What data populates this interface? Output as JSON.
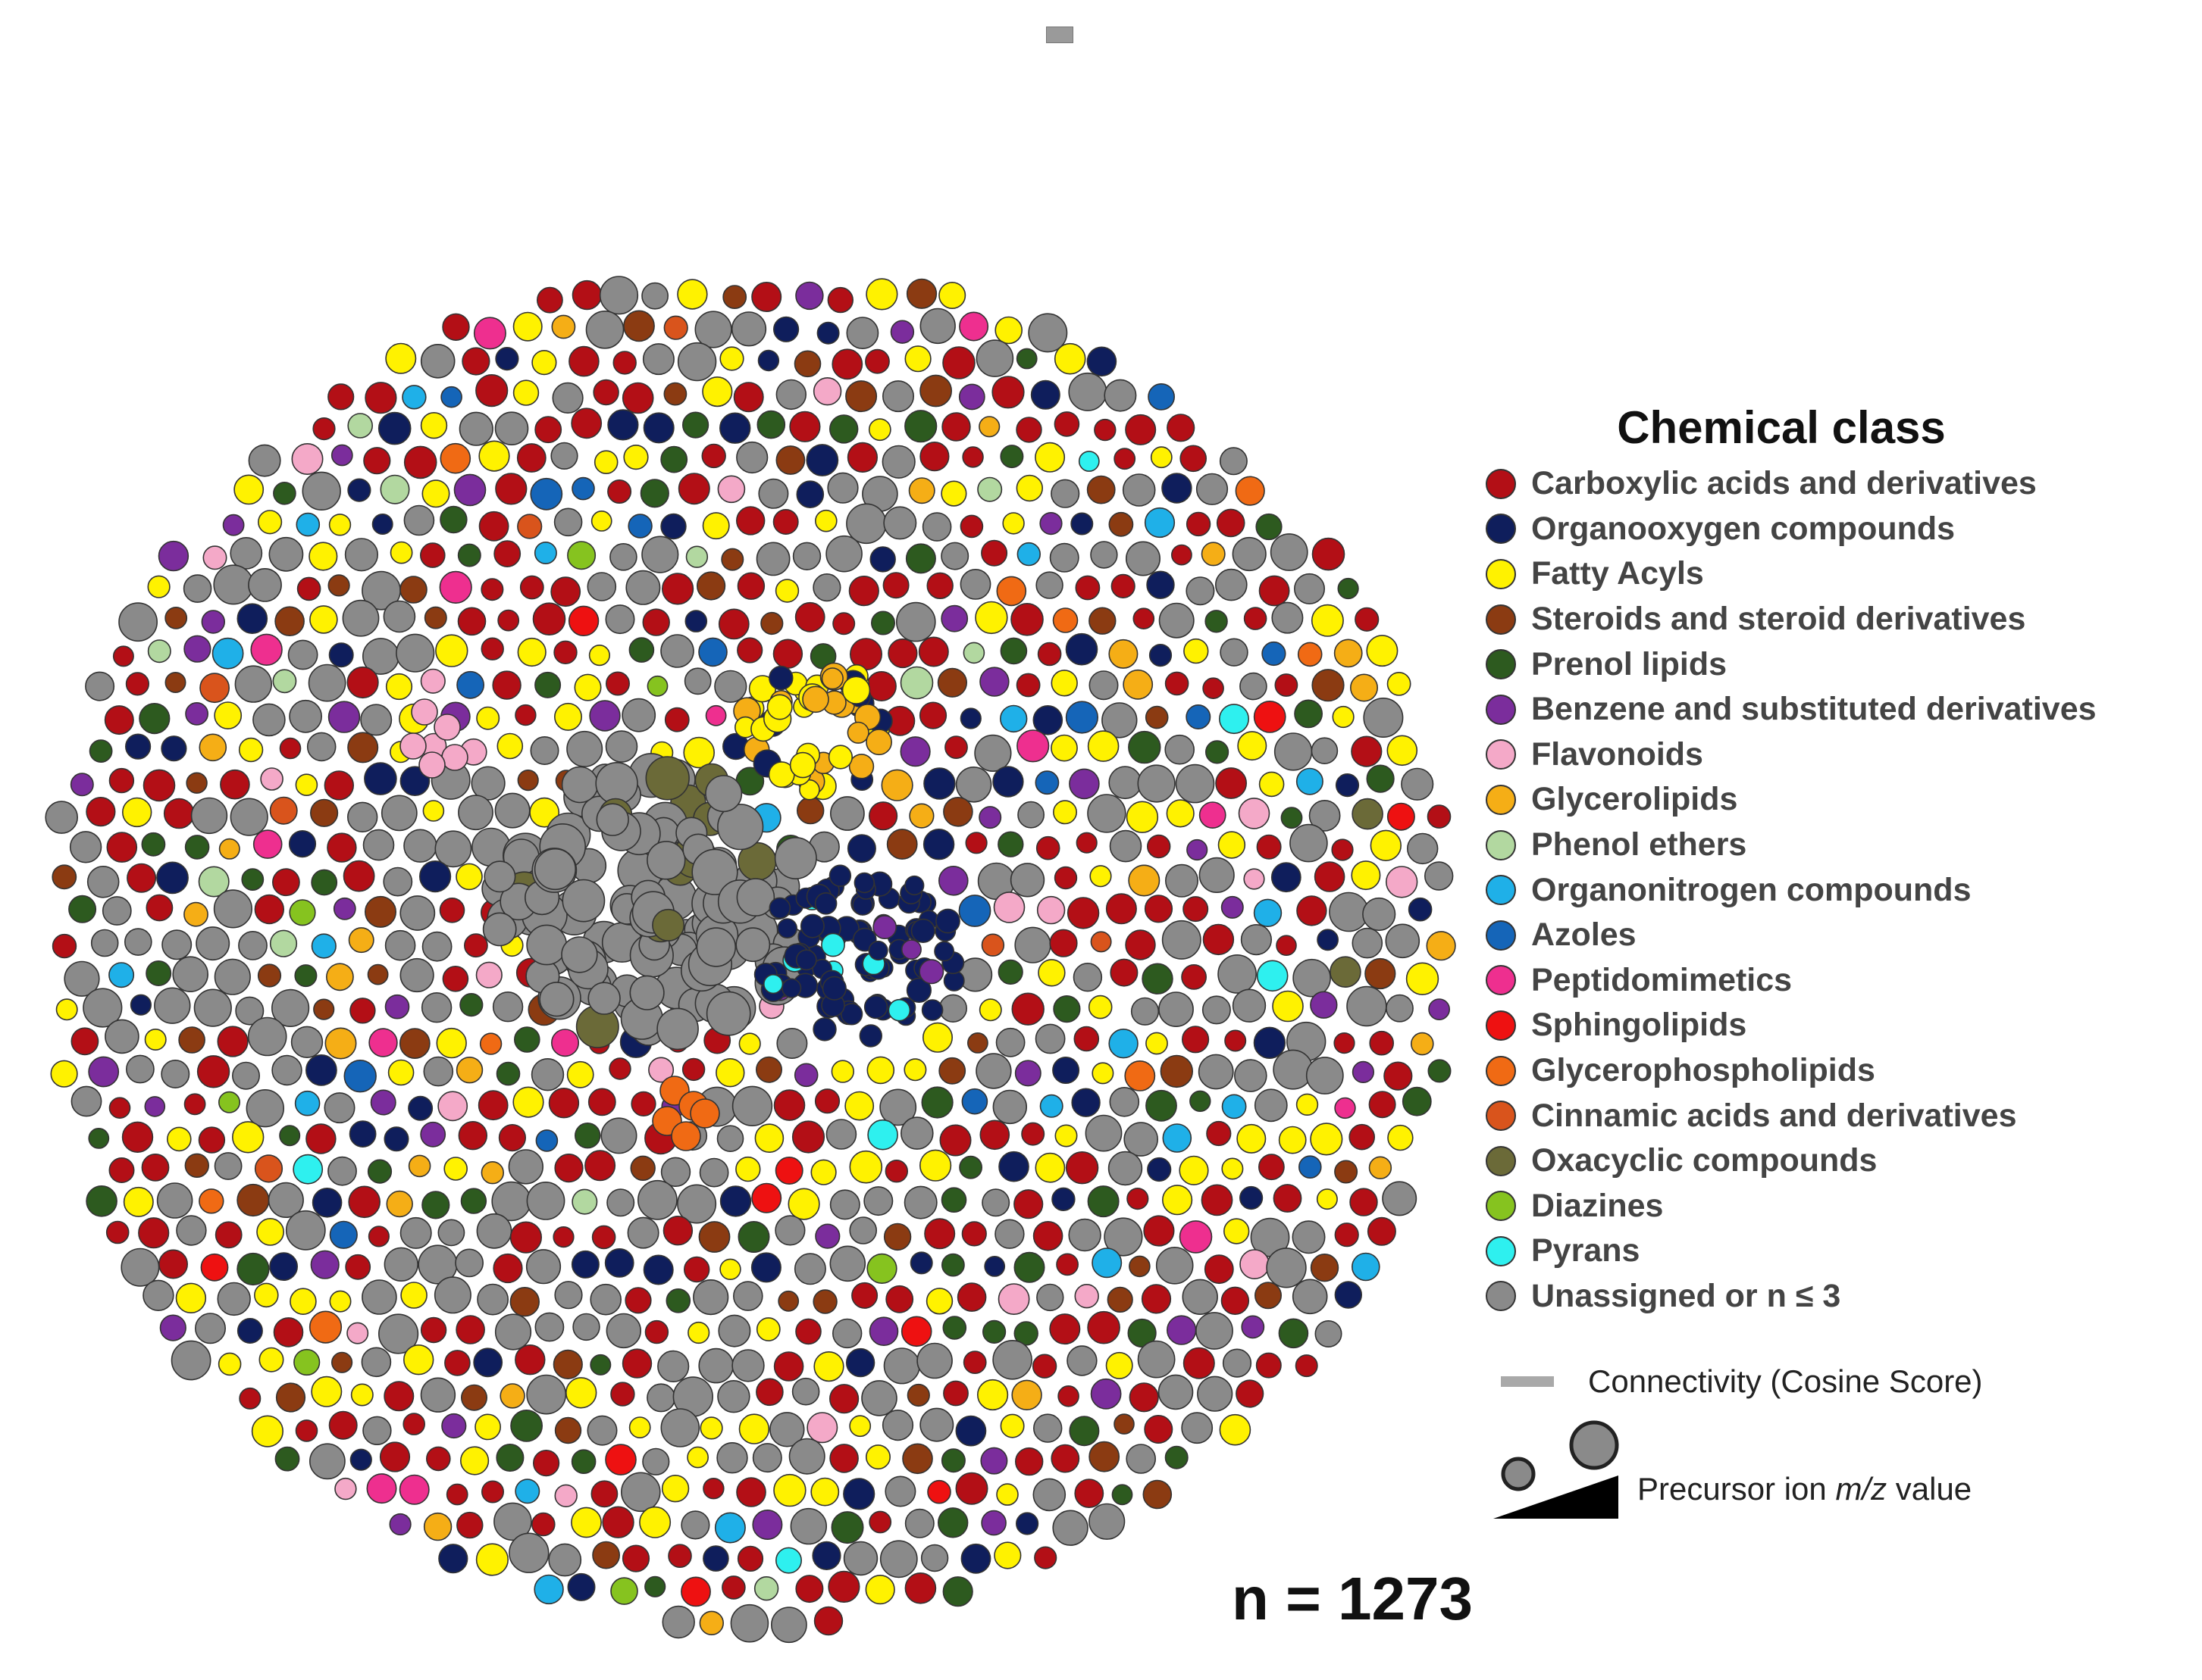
{
  "legend": {
    "title": "Chemical class",
    "items": [
      {
        "label": "Carboxylic acids and derivatives",
        "color": "#b30f16"
      },
      {
        "label": "Organooxygen compounds",
        "color": "#0f1e5c"
      },
      {
        "label": "Fatty Acyls",
        "color": "#fff200"
      },
      {
        "label": "Steroids and steroid derivatives",
        "color": "#8b3b12"
      },
      {
        "label": "Prenol lipids",
        "color": "#2d5a1f"
      },
      {
        "label": "Benzene and substituted derivatives",
        "color": "#7b2d9c"
      },
      {
        "label": "Flavonoids",
        "color": "#f4a9c8"
      },
      {
        "label": "Glycerolipids",
        "color": "#f5ae16"
      },
      {
        "label": "Phenol ethers",
        "color": "#b2d8a0"
      },
      {
        "label": "Organonitrogen compounds",
        "color": "#1fb0e8"
      },
      {
        "label": "Azoles",
        "color": "#1565b8"
      },
      {
        "label": "Peptidomimetics",
        "color": "#ee2f8f"
      },
      {
        "label": "Sphingolipids",
        "color": "#ee1111"
      },
      {
        "label": "Glycerophospholipids",
        "color": "#f06a14"
      },
      {
        "label": "Cinnamic acids and derivatives",
        "color": "#d9541c"
      },
      {
        "label": "Oxacyclic compounds",
        "color": "#6b6a38"
      },
      {
        "label": "Diazines",
        "color": "#86c31f"
      },
      {
        "label": "Pyrans",
        "color": "#2ef0ef"
      },
      {
        "label": "Unassigned or n ≤ 3",
        "color": "#8a8a8a"
      }
    ]
  },
  "connectivity_label": "Connectivity (Cosine Score)",
  "size_key": {
    "label_before": "Precursor ion ",
    "label_italic": "m/z",
    "label_after": " value"
  },
  "n_label": "n = 1273",
  "edge_color": "#a9a9a9",
  "node_outline": "#333333"
}
